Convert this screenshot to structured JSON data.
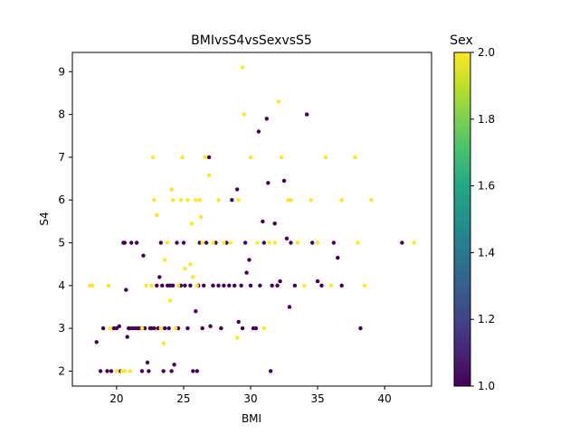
{
  "chart_data": {
    "type": "scatter",
    "title": "BMIvsS4vsSexvsS5",
    "xlabel": "BMI",
    "ylabel": "S4",
    "xlim": [
      16.7,
      43.5
    ],
    "ylim": [
      1.65,
      9.45
    ],
    "xticks": [
      20,
      25,
      30,
      35,
      40
    ],
    "yticks": [
      2,
      3,
      4,
      5,
      6,
      7,
      8,
      9
    ],
    "grid": false,
    "colorbar": {
      "label": "Sex",
      "colormap": "viridis",
      "range": [
        1.0,
        2.0
      ],
      "ticks": [
        "1.0",
        "1.2",
        "1.4",
        "1.6",
        "1.8",
        "2.0"
      ]
    },
    "colors": {
      "sex_1": "#440154",
      "sex_2": "#fde725"
    },
    "series": [
      {
        "sex": 1,
        "points": [
          [
            18.5,
            2.68
          ],
          [
            18.8,
            2.0
          ],
          [
            19.0,
            3.0
          ],
          [
            19.3,
            2.0
          ],
          [
            19.6,
            2.0
          ],
          [
            19.8,
            3.0
          ],
          [
            20.0,
            3.0
          ],
          [
            20.2,
            3.05
          ],
          [
            20.3,
            2.0
          ],
          [
            20.5,
            5.0
          ],
          [
            20.6,
            5.0
          ],
          [
            20.7,
            3.9
          ],
          [
            20.8,
            2.8
          ],
          [
            20.9,
            3.0
          ],
          [
            21.0,
            3.0
          ],
          [
            21.1,
            5.0
          ],
          [
            21.2,
            3.0
          ],
          [
            21.4,
            3.0
          ],
          [
            21.5,
            5.0
          ],
          [
            21.6,
            3.0
          ],
          [
            21.8,
            3.0
          ],
          [
            21.9,
            2.0
          ],
          [
            22.0,
            4.7
          ],
          [
            22.1,
            3.0
          ],
          [
            22.3,
            2.2
          ],
          [
            22.4,
            2.0
          ],
          [
            22.5,
            3.0
          ],
          [
            22.6,
            3.0
          ],
          [
            22.8,
            3.0
          ],
          [
            23.0,
            4.0
          ],
          [
            23.1,
            3.0
          ],
          [
            23.2,
            4.2
          ],
          [
            23.3,
            5.0
          ],
          [
            23.4,
            4.0
          ],
          [
            23.5,
            2.0
          ],
          [
            23.6,
            3.0
          ],
          [
            23.8,
            4.0
          ],
          [
            23.9,
            3.0
          ],
          [
            24.0,
            4.0
          ],
          [
            24.1,
            2.0
          ],
          [
            24.2,
            4.0
          ],
          [
            24.3,
            2.15
          ],
          [
            24.5,
            5.0
          ],
          [
            24.6,
            3.0
          ],
          [
            24.8,
            4.0
          ],
          [
            25.0,
            5.0
          ],
          [
            25.1,
            4.0
          ],
          [
            25.3,
            3.0
          ],
          [
            25.5,
            4.0
          ],
          [
            25.7,
            2.0
          ],
          [
            25.9,
            3.4
          ],
          [
            26.0,
            2.0
          ],
          [
            26.1,
            4.0
          ],
          [
            26.2,
            5.0
          ],
          [
            26.4,
            3.0
          ],
          [
            26.5,
            4.0
          ],
          [
            26.7,
            5.0
          ],
          [
            26.9,
            7.0
          ],
          [
            27.0,
            3.05
          ],
          [
            27.2,
            4.0
          ],
          [
            27.4,
            5.0
          ],
          [
            27.6,
            4.0
          ],
          [
            27.8,
            3.0
          ],
          [
            28.0,
            4.0
          ],
          [
            28.2,
            5.0
          ],
          [
            28.4,
            4.0
          ],
          [
            28.6,
            6.0
          ],
          [
            28.8,
            4.0
          ],
          [
            29.0,
            6.25
          ],
          [
            29.1,
            3.15
          ],
          [
            29.3,
            4.0
          ],
          [
            29.4,
            3.0
          ],
          [
            29.6,
            5.0
          ],
          [
            29.7,
            4.3
          ],
          [
            29.9,
            4.6
          ],
          [
            30.0,
            4.0
          ],
          [
            30.2,
            3.0
          ],
          [
            30.4,
            3.0
          ],
          [
            30.6,
            7.6
          ],
          [
            30.7,
            4.0
          ],
          [
            30.9,
            5.5
          ],
          [
            31.0,
            5.0
          ],
          [
            31.2,
            7.9
          ],
          [
            31.3,
            6.4
          ],
          [
            31.5,
            2.0
          ],
          [
            31.6,
            4.0
          ],
          [
            31.8,
            5.45
          ],
          [
            32.0,
            4.0
          ],
          [
            32.2,
            4.1
          ],
          [
            32.5,
            6.45
          ],
          [
            32.7,
            5.1
          ],
          [
            32.9,
            3.5
          ],
          [
            33.0,
            5.0
          ],
          [
            33.3,
            4.0
          ],
          [
            34.2,
            8.0
          ],
          [
            34.6,
            5.0
          ],
          [
            35.0,
            4.1
          ],
          [
            35.3,
            4.0
          ],
          [
            36.2,
            5.0
          ],
          [
            36.5,
            4.65
          ],
          [
            36.8,
            4.0
          ],
          [
            38.2,
            3.0
          ],
          [
            41.3,
            5.0
          ]
        ]
      },
      {
        "sex": 2,
        "points": [
          [
            18.0,
            4.0
          ],
          [
            18.2,
            4.0
          ],
          [
            19.4,
            4.0
          ],
          [
            19.5,
            3.0
          ],
          [
            20.0,
            2.0
          ],
          [
            20.4,
            2.0
          ],
          [
            20.6,
            2.0
          ],
          [
            21.0,
            2.0
          ],
          [
            21.9,
            3.0
          ],
          [
            22.2,
            4.0
          ],
          [
            22.6,
            4.0
          ],
          [
            22.7,
            7.0
          ],
          [
            22.8,
            6.0
          ],
          [
            23.0,
            5.65
          ],
          [
            23.3,
            3.0
          ],
          [
            23.5,
            2.65
          ],
          [
            23.6,
            4.6
          ],
          [
            23.8,
            5.0
          ],
          [
            24.0,
            3.65
          ],
          [
            24.1,
            6.25
          ],
          [
            24.2,
            6.0
          ],
          [
            24.4,
            3.0
          ],
          [
            24.6,
            4.0
          ],
          [
            24.8,
            6.0
          ],
          [
            24.9,
            7.0
          ],
          [
            25.1,
            4.4
          ],
          [
            25.3,
            6.0
          ],
          [
            25.5,
            4.5
          ],
          [
            25.6,
            5.45
          ],
          [
            25.7,
            4.2
          ],
          [
            25.9,
            6.0
          ],
          [
            26.0,
            4.0
          ],
          [
            26.2,
            6.0
          ],
          [
            26.3,
            5.6
          ],
          [
            26.4,
            5.0
          ],
          [
            26.6,
            7.0
          ],
          [
            26.9,
            6.58
          ],
          [
            27.2,
            5.0
          ],
          [
            27.6,
            6.0
          ],
          [
            28.0,
            5.0
          ],
          [
            28.5,
            5.0
          ],
          [
            29.0,
            2.78
          ],
          [
            29.1,
            6.0
          ],
          [
            29.4,
            9.1
          ],
          [
            29.5,
            8.0
          ],
          [
            30.0,
            7.0
          ],
          [
            30.5,
            5.0
          ],
          [
            31.0,
            3.0
          ],
          [
            31.4,
            5.0
          ],
          [
            31.8,
            5.0
          ],
          [
            32.1,
            8.3
          ],
          [
            32.3,
            7.0
          ],
          [
            32.8,
            6.0
          ],
          [
            33.0,
            6.0
          ],
          [
            33.5,
            5.0
          ],
          [
            34.0,
            4.0
          ],
          [
            34.5,
            6.0
          ],
          [
            35.0,
            5.0
          ],
          [
            35.6,
            7.0
          ],
          [
            36.0,
            4.0
          ],
          [
            36.8,
            6.0
          ],
          [
            37.8,
            7.0
          ],
          [
            38.0,
            5.0
          ],
          [
            38.5,
            4.0
          ],
          [
            39.0,
            6.0
          ],
          [
            42.2,
            5.0
          ]
        ]
      }
    ]
  }
}
